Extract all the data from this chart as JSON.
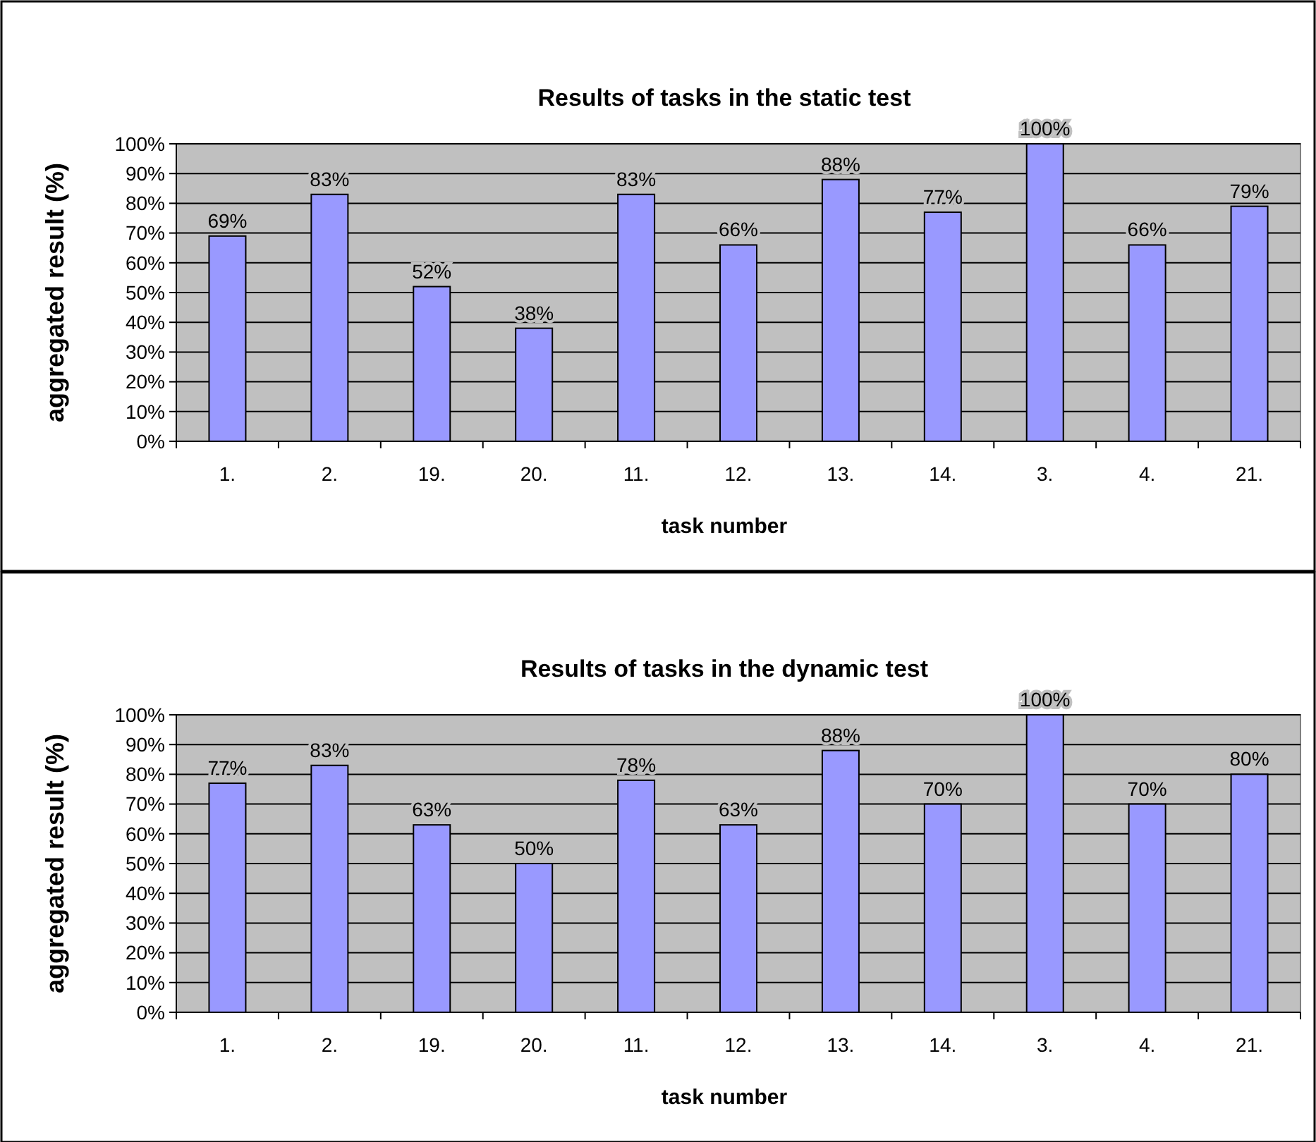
{
  "chart_data": [
    {
      "type": "bar",
      "title": "Results of tasks in the static test",
      "xlabel": "task number",
      "ylabel": "aggregated result (%)",
      "categories": [
        "1.",
        "2.",
        "19.",
        "20.",
        "11.",
        "12.",
        "13.",
        "14.",
        "3.",
        "4.",
        "21."
      ],
      "values": [
        69,
        83,
        52,
        38,
        83,
        66,
        88,
        77,
        100,
        66,
        79
      ],
      "value_labels": [
        "69%",
        "83%",
        "52%",
        "38%",
        "83%",
        "66%",
        "88%",
        "77%",
        "100%",
        "66%",
        "79%"
      ],
      "color": "#9999ff",
      "ylim": [
        0,
        100
      ],
      "yticks": [
        {
          "value": 0,
          "label": "0%"
        },
        {
          "value": 10,
          "label": "10%"
        },
        {
          "value": 20,
          "label": "20%"
        },
        {
          "value": 30,
          "label": "30%"
        },
        {
          "value": 40,
          "label": "40%"
        },
        {
          "value": 50,
          "label": "50%"
        },
        {
          "value": 60,
          "label": "60%"
        },
        {
          "value": 70,
          "label": "70%"
        },
        {
          "value": 80,
          "label": "80%"
        },
        {
          "value": 90,
          "label": "90%"
        },
        {
          "value": 100,
          "label": "100%"
        }
      ],
      "grid": "y"
    },
    {
      "type": "bar",
      "title": "Results of tasks in the dynamic test",
      "xlabel": "task number",
      "ylabel": "aggregated result (%)",
      "categories": [
        "1.",
        "2.",
        "19.",
        "20.",
        "11.",
        "12.",
        "13.",
        "14.",
        "3.",
        "4.",
        "21."
      ],
      "values": [
        77,
        83,
        63,
        50,
        78,
        63,
        88,
        70,
        100,
        70,
        80
      ],
      "value_labels": [
        "77%",
        "83%",
        "63%",
        "50%",
        "78%",
        "63%",
        "88%",
        "70%",
        "100%",
        "70%",
        "80%"
      ],
      "color": "#9999ff",
      "ylim": [
        0,
        100
      ],
      "yticks": [
        {
          "value": 0,
          "label": "0%"
        },
        {
          "value": 10,
          "label": "10%"
        },
        {
          "value": 20,
          "label": "20%"
        },
        {
          "value": 30,
          "label": "30%"
        },
        {
          "value": 40,
          "label": "40%"
        },
        {
          "value": 50,
          "label": "50%"
        },
        {
          "value": 60,
          "label": "60%"
        },
        {
          "value": 70,
          "label": "70%"
        },
        {
          "value": 80,
          "label": "80%"
        },
        {
          "value": 90,
          "label": "90%"
        },
        {
          "value": 100,
          "label": "100%"
        }
      ],
      "grid": "y"
    }
  ]
}
